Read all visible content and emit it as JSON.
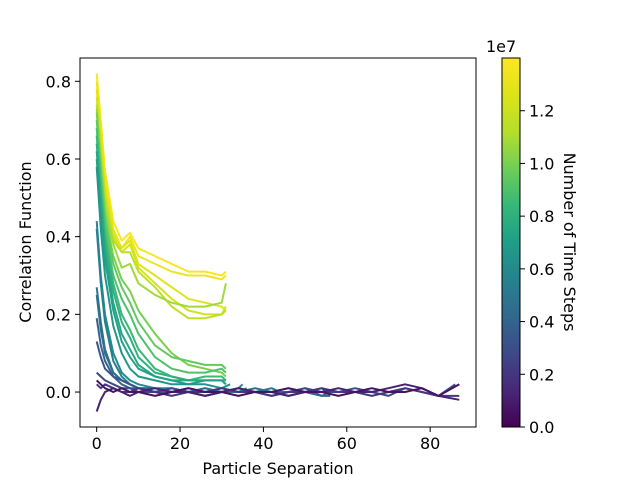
{
  "chart_data": {
    "type": "line",
    "title": "",
    "xlabel": "Particle Separation",
    "ylabel": "Correlation Function",
    "xlim": [
      -4,
      91
    ],
    "ylim": [
      -0.09,
      0.86
    ],
    "xticks": [
      0,
      20,
      40,
      60,
      80
    ],
    "xtick_labels": [
      "0",
      "20",
      "40",
      "60",
      "80"
    ],
    "yticks": [
      0.0,
      0.2,
      0.4,
      0.6,
      0.8
    ],
    "ytick_labels": [
      "0.0",
      "0.2",
      "0.4",
      "0.6",
      "0.8"
    ],
    "colorbar": {
      "label": "Number of Time Steps",
      "multiplier": "1e7",
      "range": [
        0.0,
        1.4
      ],
      "ticks": [
        0.0,
        0.2,
        0.4,
        0.6,
        0.8,
        1.0,
        1.2
      ],
      "tick_labels": [
        "0.0",
        "0.2",
        "0.4",
        "0.6",
        "0.8",
        "1.0",
        "1.2"
      ],
      "colormap": "viridis"
    },
    "series": [
      {
        "c": 1.38,
        "x": [
          0,
          1,
          2,
          4,
          6,
          8,
          10,
          14,
          18,
          22,
          26,
          30,
          31
        ],
        "y": [
          0.82,
          0.7,
          0.57,
          0.44,
          0.39,
          0.41,
          0.37,
          0.35,
          0.33,
          0.31,
          0.31,
          0.3,
          0.31
        ]
      },
      {
        "c": 1.33,
        "x": [
          0,
          1,
          2,
          4,
          6,
          8,
          10,
          14,
          18,
          22,
          26,
          30,
          31
        ],
        "y": [
          0.8,
          0.68,
          0.55,
          0.42,
          0.37,
          0.4,
          0.35,
          0.33,
          0.31,
          0.3,
          0.3,
          0.29,
          0.3
        ]
      },
      {
        "c": 1.28,
        "x": [
          0,
          1,
          2,
          4,
          6,
          8,
          10,
          14,
          18,
          22,
          26,
          30,
          31
        ],
        "y": [
          0.78,
          0.66,
          0.53,
          0.41,
          0.37,
          0.39,
          0.33,
          0.3,
          0.27,
          0.24,
          0.23,
          0.22,
          0.21
        ]
      },
      {
        "c": 1.22,
        "x": [
          0,
          1,
          2,
          4,
          6,
          8,
          10,
          14,
          18,
          22,
          26,
          30,
          31
        ],
        "y": [
          0.76,
          0.64,
          0.51,
          0.4,
          0.36,
          0.38,
          0.32,
          0.28,
          0.24,
          0.21,
          0.2,
          0.2,
          0.22
        ]
      },
      {
        "c": 1.15,
        "x": [
          0,
          1,
          2,
          4,
          6,
          8,
          10,
          14,
          18,
          22,
          26,
          30,
          31
        ],
        "y": [
          0.74,
          0.62,
          0.5,
          0.39,
          0.36,
          0.36,
          0.31,
          0.27,
          0.22,
          0.19,
          0.19,
          0.2,
          0.21
        ]
      },
      {
        "c": 1.08,
        "x": [
          0,
          1,
          2,
          4,
          6,
          8,
          10,
          14,
          18,
          22,
          26,
          30,
          31
        ],
        "y": [
          0.73,
          0.6,
          0.48,
          0.38,
          0.32,
          0.33,
          0.28,
          0.25,
          0.23,
          0.22,
          0.22,
          0.23,
          0.28
        ]
      },
      {
        "c": 1.0,
        "x": [
          0,
          1,
          2,
          4,
          6,
          8,
          10,
          14,
          18,
          22,
          26,
          30,
          31
        ],
        "y": [
          0.72,
          0.58,
          0.46,
          0.35,
          0.29,
          0.26,
          0.21,
          0.15,
          0.1,
          0.07,
          0.06,
          0.05,
          0.04
        ]
      },
      {
        "c": 0.95,
        "x": [
          0,
          1,
          2,
          4,
          6,
          8,
          10,
          14,
          18,
          22,
          26,
          30,
          31
        ],
        "y": [
          0.7,
          0.56,
          0.44,
          0.33,
          0.27,
          0.23,
          0.18,
          0.12,
          0.09,
          0.08,
          0.07,
          0.07,
          0.06
        ]
      },
      {
        "c": 0.9,
        "x": [
          0,
          1,
          2,
          4,
          6,
          8,
          10,
          14,
          18,
          22,
          26,
          30,
          31
        ],
        "y": [
          0.68,
          0.54,
          0.42,
          0.3,
          0.24,
          0.2,
          0.15,
          0.09,
          0.06,
          0.05,
          0.05,
          0.06,
          0.05
        ]
      },
      {
        "c": 0.85,
        "x": [
          0,
          1,
          2,
          4,
          6,
          8,
          10,
          14,
          18,
          22,
          26,
          30,
          31
        ],
        "y": [
          0.66,
          0.52,
          0.4,
          0.28,
          0.2,
          0.16,
          0.11,
          0.06,
          0.04,
          0.03,
          0.04,
          0.04,
          0.03
        ]
      },
      {
        "c": 0.8,
        "x": [
          0,
          1,
          2,
          4,
          6,
          8,
          10,
          14,
          18,
          22,
          26,
          30,
          31
        ],
        "y": [
          0.64,
          0.5,
          0.38,
          0.26,
          0.18,
          0.14,
          0.09,
          0.05,
          0.04,
          0.03,
          0.03,
          0.03,
          0.03
        ]
      },
      {
        "c": 0.75,
        "x": [
          0,
          1,
          2,
          4,
          6,
          8,
          10,
          14,
          18,
          22,
          26,
          30,
          31
        ],
        "y": [
          0.62,
          0.48,
          0.36,
          0.23,
          0.15,
          0.11,
          0.07,
          0.04,
          0.03,
          0.03,
          0.03,
          0.03,
          0.02
        ]
      },
      {
        "c": 0.72,
        "x": [
          0,
          1,
          2,
          4,
          6,
          8,
          10,
          14,
          18,
          22,
          26,
          30,
          31
        ],
        "y": [
          0.6,
          0.46,
          0.34,
          0.21,
          0.13,
          0.09,
          0.06,
          0.04,
          0.03,
          0.02,
          0.03,
          0.03,
          0.02
        ]
      },
      {
        "c": 0.66,
        "x": [
          0,
          1,
          2,
          4,
          6,
          8,
          10,
          14,
          18,
          22,
          26,
          30,
          32
        ],
        "y": [
          0.58,
          0.42,
          0.3,
          0.17,
          0.1,
          0.06,
          0.04,
          0.03,
          0.02,
          0.02,
          0.02,
          0.01,
          0.02
        ]
      },
      {
        "c": 0.6,
        "x": [
          0,
          1,
          2,
          4,
          6,
          8,
          10,
          14,
          18,
          22,
          26,
          30,
          34,
          35
        ],
        "y": [
          0.44,
          0.3,
          0.2,
          0.1,
          0.05,
          0.03,
          0.02,
          0.01,
          0.01,
          0.0,
          0.01,
          0.0,
          0.01,
          0.02
        ]
      },
      {
        "c": 0.55,
        "x": [
          0,
          1,
          2,
          4,
          6,
          8,
          10,
          14,
          18,
          22,
          26,
          30,
          34,
          36
        ],
        "y": [
          0.42,
          0.28,
          0.18,
          0.08,
          0.04,
          0.02,
          0.01,
          0.01,
          0.0,
          0.01,
          0.0,
          0.01,
          0.0,
          0.01
        ]
      },
      {
        "c": 0.5,
        "x": [
          0,
          1,
          2,
          4,
          6,
          8,
          10,
          14,
          18,
          22,
          26,
          30,
          34,
          38,
          42,
          44
        ],
        "y": [
          0.27,
          0.18,
          0.11,
          0.05,
          0.03,
          0.02,
          0.01,
          0.0,
          0.01,
          0.0,
          0.0,
          0.01,
          0.0,
          0.0,
          0.01,
          0.0
        ]
      },
      {
        "c": 0.45,
        "x": [
          0,
          1,
          2,
          4,
          6,
          8,
          10,
          14,
          18,
          22,
          26,
          30,
          34,
          38,
          42,
          46,
          50,
          54,
          56
        ],
        "y": [
          0.25,
          0.16,
          0.1,
          0.05,
          0.03,
          0.02,
          0.01,
          0.01,
          0.0,
          0.0,
          0.01,
          0.0,
          0.0,
          0.01,
          0.0,
          0.0,
          0.01,
          -0.01,
          0.0
        ]
      },
      {
        "c": 0.4,
        "x": [
          0,
          1,
          2,
          4,
          6,
          8,
          10,
          14,
          18,
          22,
          26,
          30,
          34,
          38,
          42,
          46,
          50,
          54,
          56
        ],
        "y": [
          0.19,
          0.12,
          0.08,
          0.04,
          0.02,
          0.01,
          0.01,
          0.0,
          0.0,
          0.01,
          0.0,
          0.0,
          0.01,
          0.0,
          0.0,
          0.01,
          0.0,
          -0.01,
          -0.01
        ]
      },
      {
        "c": 0.34,
        "x": [
          0,
          1,
          2,
          4,
          6,
          8,
          10,
          14,
          18,
          22,
          26,
          30,
          34,
          38,
          42,
          46,
          50,
          54,
          56
        ],
        "y": [
          0.13,
          0.09,
          0.06,
          0.04,
          0.03,
          0.02,
          0.01,
          0.0,
          0.01,
          0.0,
          -0.01,
          0.0,
          0.01,
          0.0,
          0.0,
          -0.01,
          0.0,
          0.01,
          -0.01
        ]
      },
      {
        "c": 0.28,
        "x": [
          0,
          1,
          2,
          4,
          6,
          8,
          10,
          14,
          18,
          22,
          26,
          30,
          34,
          38,
          42,
          46,
          50,
          54,
          58,
          62,
          66,
          70,
          74,
          78,
          82,
          86
        ],
        "y": [
          0.05,
          0.04,
          0.03,
          0.02,
          0.01,
          0.01,
          0.0,
          0.0,
          0.01,
          0.0,
          -0.01,
          0.0,
          0.01,
          0.0,
          -0.01,
          0.0,
          0.01,
          0.0,
          0.0,
          0.01,
          0.0,
          -0.01,
          0.01,
          0.0,
          -0.01,
          0.02
        ]
      },
      {
        "c": 0.2,
        "x": [
          0,
          1,
          2,
          4,
          6,
          8,
          10,
          14,
          18,
          22,
          26,
          30,
          34,
          38,
          42,
          46,
          50,
          54,
          58,
          62,
          66,
          70,
          74,
          78,
          82,
          87
        ],
        "y": [
          0.02,
          0.01,
          0.02,
          0.01,
          0.0,
          0.0,
          0.01,
          0.0,
          -0.01,
          0.0,
          0.0,
          0.01,
          0.0,
          0.0,
          -0.01,
          0.0,
          0.0,
          0.01,
          0.0,
          0.0,
          -0.01,
          0.0,
          0.01,
          0.0,
          -0.01,
          -0.01
        ]
      },
      {
        "c": 0.12,
        "x": [
          0,
          1,
          2,
          4,
          6,
          8,
          10,
          14,
          18,
          22,
          26,
          30,
          34,
          38,
          42,
          46,
          50,
          54,
          58,
          62,
          66,
          70,
          74,
          78,
          82,
          87
        ],
        "y": [
          -0.05,
          -0.02,
          0.0,
          0.01,
          0.0,
          -0.01,
          0.0,
          0.01,
          0.0,
          0.0,
          -0.01,
          0.0,
          0.01,
          0.0,
          0.0,
          -0.01,
          0.0,
          0.0,
          0.01,
          0.0,
          0.0,
          0.01,
          0.02,
          0.01,
          -0.01,
          -0.02
        ]
      },
      {
        "c": 0.06,
        "x": [
          0,
          1,
          2,
          4,
          6,
          8,
          10,
          14,
          18,
          22,
          26,
          30,
          34,
          38,
          42,
          46,
          50,
          54,
          58,
          62,
          66,
          70,
          74,
          78,
          82,
          87
        ],
        "y": [
          0.03,
          0.02,
          0.01,
          0.0,
          0.01,
          0.0,
          0.0,
          -0.01,
          0.0,
          0.01,
          0.0,
          0.0,
          -0.01,
          0.0,
          0.0,
          0.01,
          0.0,
          0.0,
          -0.01,
          0.0,
          0.01,
          0.0,
          0.0,
          0.01,
          -0.01,
          0.02
        ]
      }
    ]
  }
}
